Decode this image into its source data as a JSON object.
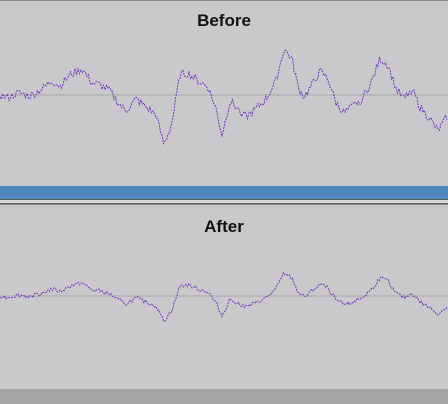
{
  "panels": [
    {
      "title": "Before",
      "wave_color": "#6a2bbf",
      "amplitude": 1.0
    },
    {
      "title": "After",
      "wave_color": "#6a2bbf",
      "amplitude": 0.5
    }
  ],
  "colors": {
    "panel_bg": "#c9c9cb",
    "selection_bar": "#4f86be",
    "bottom_bar": "#a3a5a7",
    "center_line": "#9c9c9c"
  }
}
